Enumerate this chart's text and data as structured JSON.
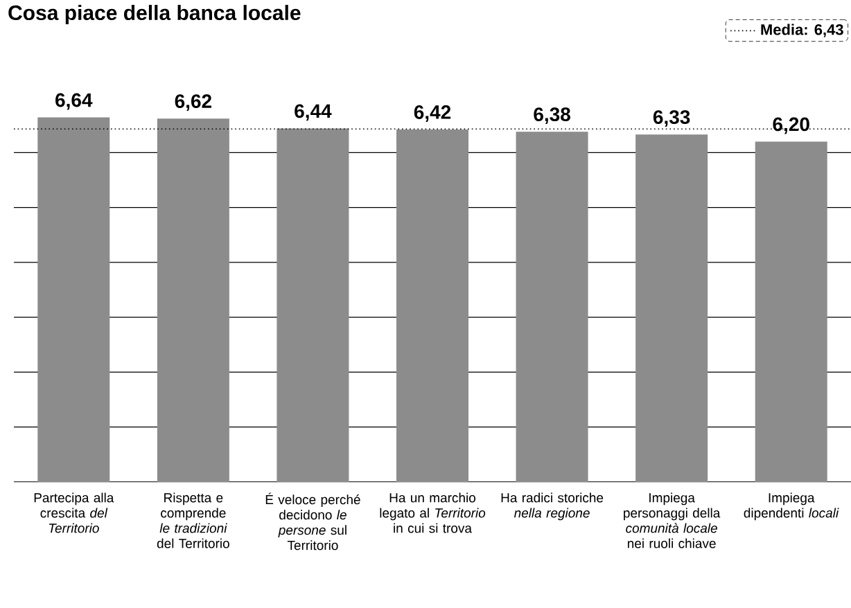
{
  "chart_data": {
    "type": "bar",
    "title": "Cosa piace della banca locale",
    "categories": [
      "Partecipa alla crescita *del Territorio*",
      "Rispetta e comprende *le tradizioni* del Territorio",
      "É veloce perché decidono *le persone* sul Territorio",
      "Ha un marchio legato al *Territorio* in cui si trova",
      "Ha radici storiche *nella regione*",
      "Impiega personaggi della *comunità locale* nei ruoli chiave",
      "Impiega dipendenti *locali*"
    ],
    "values": [
      6.64,
      6.62,
      6.44,
      6.42,
      6.38,
      6.33,
      6.2
    ],
    "value_labels": [
      "6,64",
      "6,62",
      "6,44",
      "6,42",
      "6,38",
      "6,33",
      "6,20"
    ],
    "color": "#8c8c8c",
    "yticks": [
      {
        "value": 0,
        "label": null
      },
      {
        "value": 1,
        "label": null
      },
      {
        "value": 2,
        "label": null
      },
      {
        "value": 3,
        "label": null
      },
      {
        "value": 4,
        "label": null
      },
      {
        "value": 5,
        "label": null
      },
      {
        "value": 6,
        "label": null
      }
    ],
    "grid": "y",
    "tick_labels": "x",
    "ref_lines": [
      {
        "axis": "y",
        "value": 6.43,
        "label": "Media: 6,43",
        "line_style": "dotted",
        "color": "#000000"
      }
    ]
  }
}
